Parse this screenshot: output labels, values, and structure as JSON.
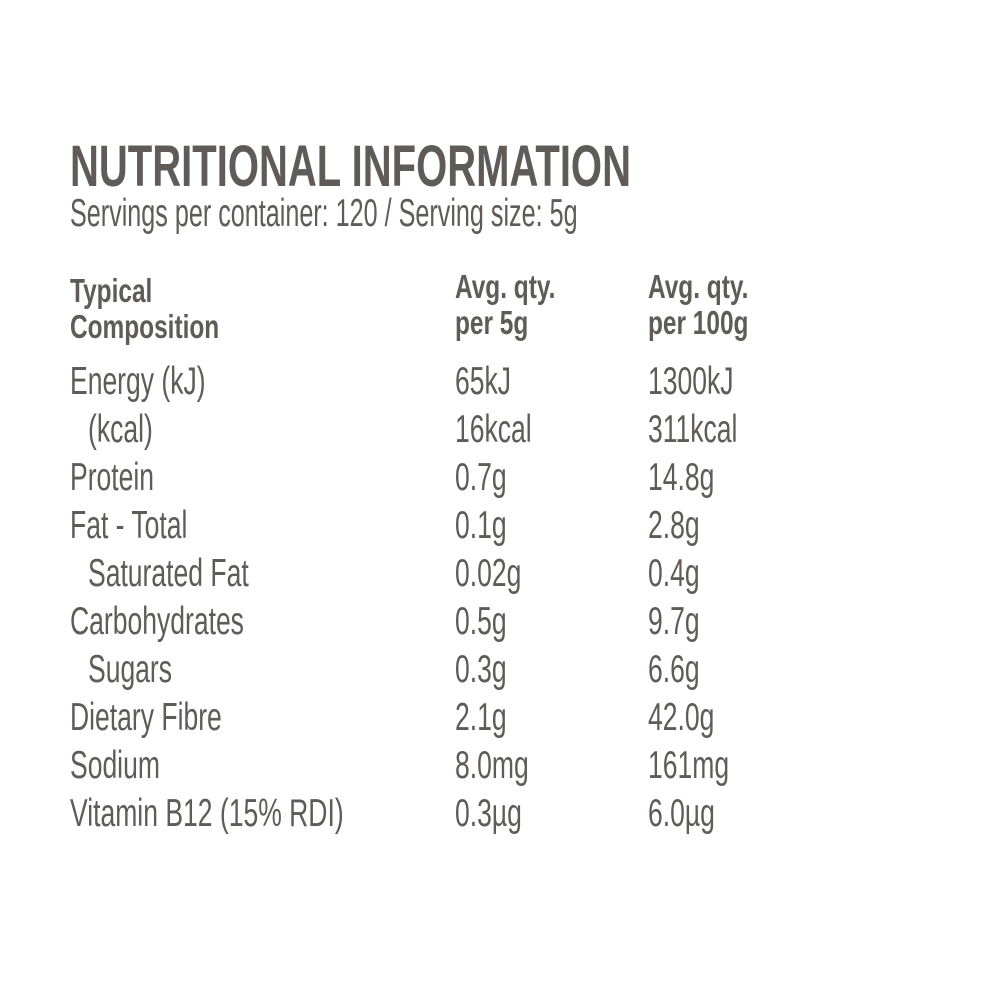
{
  "title": "NUTRITIONAL INFORMATION",
  "subtitle": "Servings per container: 120 / Serving size: 5g",
  "table": {
    "headers": [
      [
        "Typical",
        "Composition"
      ],
      [
        "Avg. qty.",
        "per 5g"
      ],
      [
        "Avg. qty.",
        "per 100g"
      ]
    ],
    "rows": [
      {
        "name": "Energy (kJ)",
        "per_serving": "65kJ",
        "per_100g": "1300kJ",
        "indent": false
      },
      {
        "name": "(kcal)",
        "per_serving": "16kcal",
        "per_100g": "311kcal",
        "indent": true
      },
      {
        "name": "Protein",
        "per_serving": "0.7g",
        "per_100g": "14.8g",
        "indent": false
      },
      {
        "name": "Fat - Total",
        "per_serving": "0.1g",
        "per_100g": "2.8g",
        "indent": false
      },
      {
        "name": "Saturated Fat",
        "per_serving": "0.02g",
        "per_100g": "0.4g",
        "indent": true
      },
      {
        "name": "Carbohydrates",
        "per_serving": "0.5g",
        "per_100g": "9.7g",
        "indent": false
      },
      {
        "name": "Sugars",
        "per_serving": "0.3g",
        "per_100g": "6.6g",
        "indent": true
      },
      {
        "name": "Dietary Fibre",
        "per_serving": "2.1g",
        "per_100g": "42.0g",
        "indent": false
      },
      {
        "name": "Sodium",
        "per_serving": "8.0mg",
        "per_100g": "161mg",
        "indent": false
      },
      {
        "name": "Vitamin B12 (15% RDI)",
        "per_serving": "0.3µg",
        "per_100g": "6.0µg",
        "indent": false
      }
    ]
  },
  "colors": {
    "text": "#5f5b58",
    "background": "#ffffff"
  }
}
